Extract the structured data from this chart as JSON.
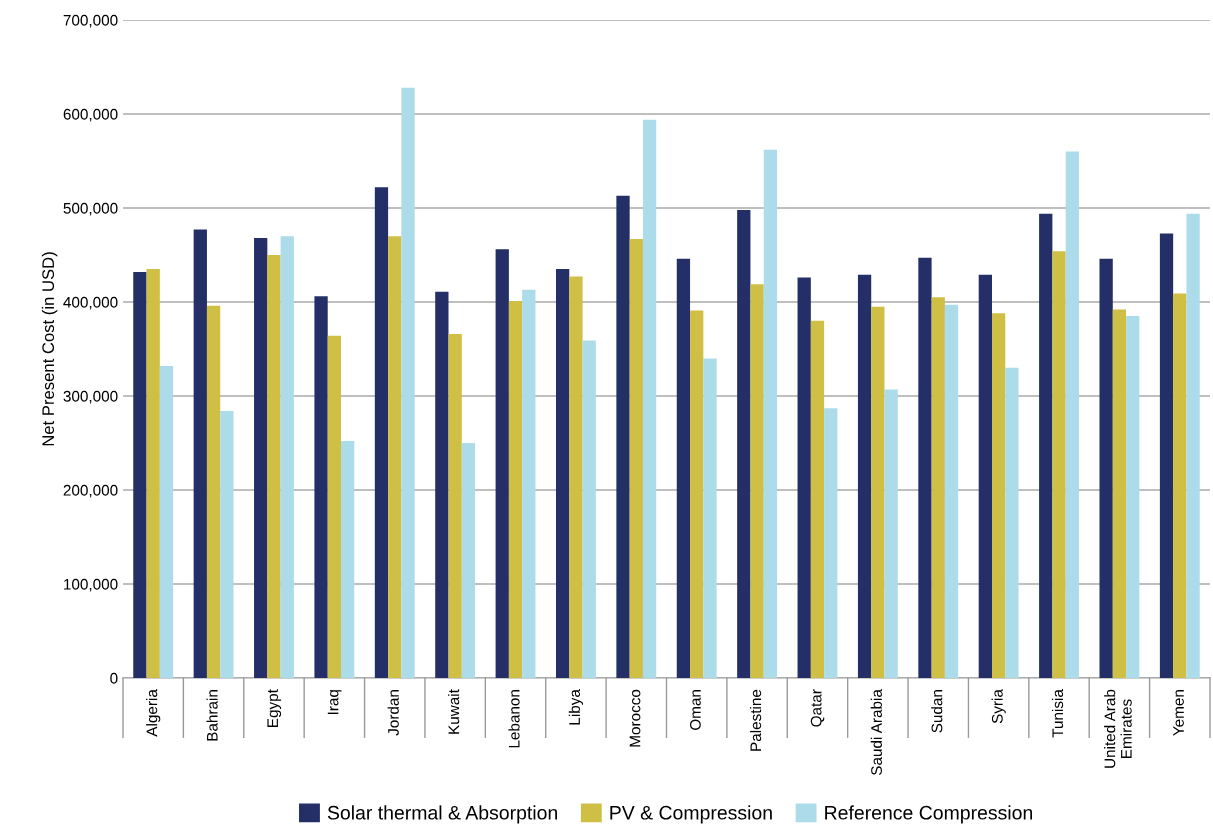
{
  "chart_data": {
    "type": "bar",
    "ylabel": "Net Present Cost (in USD)",
    "categories": [
      "Algeria",
      "Bahrain",
      "Egypt",
      "Iraq",
      "Jordan",
      "Kuwait",
      "Lebanon",
      "Libya",
      "Morocco",
      "Oman",
      "Palestine",
      "Qatar",
      "Saudi Arabia",
      "Sudan",
      "Syria",
      "Tunisia",
      "United Arab\nEmirates",
      "Yemen"
    ],
    "series": [
      {
        "name": "Solar thermal & Absorption",
        "color": "#232f66",
        "values": [
          432000,
          477000,
          468000,
          406000,
          522000,
          411000,
          456000,
          435000,
          513000,
          446000,
          498000,
          426000,
          429000,
          447000,
          429000,
          494000,
          446000,
          473000
        ]
      },
      {
        "name": "PV & Compression",
        "color": "#cfbf45",
        "values": [
          435000,
          396000,
          450000,
          364000,
          470000,
          366000,
          401000,
          427000,
          467000,
          391000,
          419000,
          380000,
          395000,
          405000,
          388000,
          454000,
          392000,
          409000
        ]
      },
      {
        "name": "Reference Compression",
        "color": "#acdce9",
        "values": [
          332000,
          284000,
          470000,
          252000,
          628000,
          250000,
          413000,
          359000,
          594000,
          340000,
          562000,
          287000,
          307000,
          397000,
          330000,
          560000,
          385000,
          494000
        ]
      }
    ],
    "ylim": [
      0,
      700000
    ],
    "yticks": [
      {
        "value": 0,
        "label": "0"
      },
      {
        "value": 100000,
        "label": "100,000"
      },
      {
        "value": 200000,
        "label": "200,000"
      },
      {
        "value": 300000,
        "label": "300,000"
      },
      {
        "value": 400000,
        "label": "400,000"
      },
      {
        "value": 500000,
        "label": "500,000"
      },
      {
        "value": 600000,
        "label": "600,000"
      },
      {
        "value": 700000,
        "label": "700,000"
      }
    ],
    "grid": "y",
    "legend": "bottom"
  }
}
